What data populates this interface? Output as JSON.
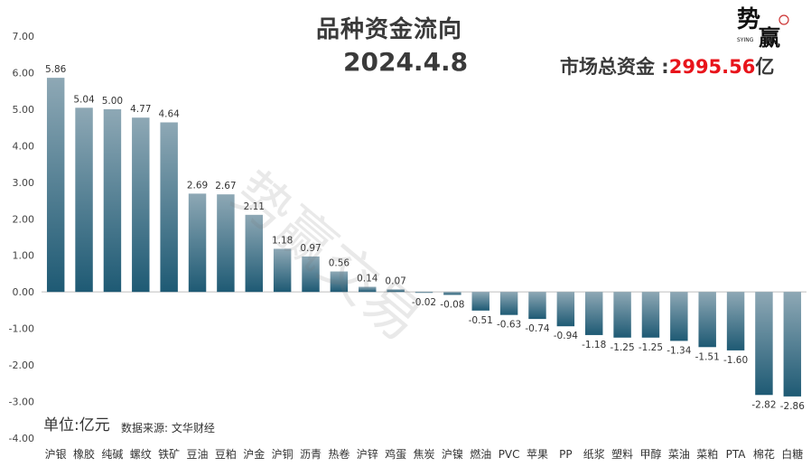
{
  "title": "品种资金流向",
  "date": "2024.4.8",
  "total_label": "市场总资金 :",
  "total_value": "2995.56",
  "total_unit": "亿",
  "unit_label": "单位:亿元",
  "source_label": "数据来源: 文华财经",
  "logo_text": "势赢",
  "logo_sub": "SYING",
  "watermark": "势赢交易",
  "colors": {
    "bar_top": "#8ea8b5",
    "bar_bottom": "#1e5a74",
    "accent": "#e8141b"
  },
  "chart_data": {
    "type": "bar",
    "title": "品种资金流向",
    "categories": [
      "沪银",
      "橡胶",
      "纯碱",
      "螺纹",
      "铁矿",
      "豆油",
      "豆粕",
      "沪金",
      "沪铜",
      "沥青",
      "热卷",
      "沪锌",
      "鸡蛋",
      "焦炭",
      "沪镍",
      "燃油",
      "PVC",
      "苹果",
      "PP",
      "纸浆",
      "塑料",
      "甲醇",
      "菜油",
      "菜粕",
      "PTA",
      "棉花",
      "白糖"
    ],
    "values": [
      5.86,
      5.04,
      5.0,
      4.77,
      4.64,
      2.69,
      2.67,
      2.11,
      1.18,
      0.97,
      0.56,
      0.14,
      0.07,
      -0.02,
      -0.08,
      -0.51,
      -0.63,
      -0.74,
      -0.94,
      -1.18,
      -1.25,
      -1.25,
      -1.34,
      -1.51,
      -1.6,
      -2.82,
      -2.86
    ],
    "value_labels": [
      "5.86",
      "5.04",
      "5.00",
      "4.77",
      "4.64",
      "2.69",
      "2.67",
      "2.11",
      "1.18",
      "0.97",
      "0.56",
      "0.14",
      "0.07",
      "-0.02",
      "-0.08",
      "-0.51",
      "-0.63",
      "-0.74",
      "-0.94",
      "-1.18",
      "-1.25",
      "-1.25",
      "-1.34",
      "-1.51",
      "-1.60",
      "-2.82",
      "-2.86"
    ],
    "yticks": [
      "7.00",
      "6.00",
      "5.00",
      "4.00",
      "3.00",
      "2.00",
      "1.00",
      "0.00",
      "-1.00",
      "-2.00",
      "-3.00",
      "-4.00"
    ],
    "ylim": [
      -4,
      7
    ],
    "grid": false
  }
}
